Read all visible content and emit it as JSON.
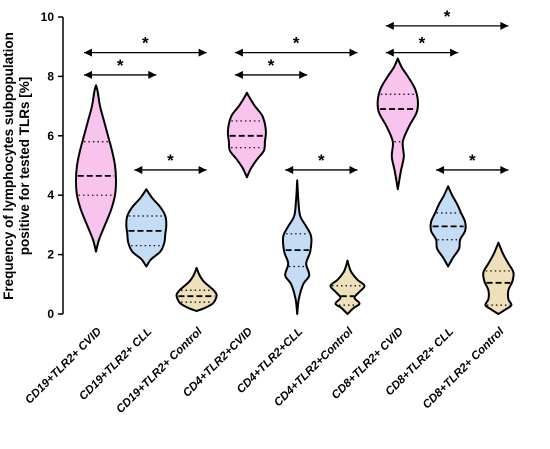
{
  "chart_data": {
    "type": "violin",
    "ylabel_line1": "Frequency of lymphocytes subpopulation",
    "ylabel_line2": "positive for tested TLRs [%]",
    "ylim": [
      0,
      10
    ],
    "yticks": [
      "0",
      "2",
      "4",
      "6",
      "8",
      "10"
    ],
    "categories": [
      "CD19+TLR2+ CVID",
      "CD19+TLR2+ CLL",
      "CD19+TLR2+ Control",
      "CD4+TLR2+CVID",
      "CD4+TLR2+CLL",
      "CD4+TLR2+Control",
      "CD8+TLR2+ CVID",
      "CD8+TLR2+ CLL",
      "CD8+TLR2+ Control"
    ],
    "group_colors": {
      "CVID": "#f8c4ee",
      "CLL": "#c4dcf4",
      "Control": "#ede0bb"
    },
    "violins": [
      {
        "category": "CD19+TLR2+ CVID",
        "group": "CVID",
        "min": 2.1,
        "max": 7.7,
        "q1": 4.0,
        "median": 4.65,
        "q3": 5.8,
        "profile": [
          [
            2.1,
            0
          ],
          [
            2.5,
            0.15
          ],
          [
            3.0,
            0.45
          ],
          [
            3.5,
            0.75
          ],
          [
            4.0,
            0.95
          ],
          [
            4.5,
            1.0
          ],
          [
            5.0,
            0.95
          ],
          [
            5.5,
            0.8
          ],
          [
            6.0,
            0.6
          ],
          [
            6.5,
            0.4
          ],
          [
            7.0,
            0.2
          ],
          [
            7.5,
            0.08
          ],
          [
            7.7,
            0
          ]
        ]
      },
      {
        "category": "CD19+TLR2+ CLL",
        "group": "CLL",
        "min": 1.6,
        "max": 4.2,
        "q1": 2.3,
        "median": 2.8,
        "q3": 3.3,
        "profile": [
          [
            1.6,
            0
          ],
          [
            1.85,
            0.25
          ],
          [
            2.1,
            0.7
          ],
          [
            2.4,
            0.9
          ],
          [
            2.7,
            0.95
          ],
          [
            3.0,
            1.0
          ],
          [
            3.3,
            0.95
          ],
          [
            3.6,
            0.7
          ],
          [
            3.9,
            0.3
          ],
          [
            4.2,
            0
          ]
        ]
      },
      {
        "category": "CD19+TLR2+ Control",
        "group": "Control",
        "min": 0.1,
        "max": 1.55,
        "q1": 0.4,
        "median": 0.6,
        "q3": 0.8,
        "profile": [
          [
            0.1,
            0
          ],
          [
            0.2,
            0.4
          ],
          [
            0.35,
            0.8
          ],
          [
            0.5,
            0.95
          ],
          [
            0.65,
            1.0
          ],
          [
            0.8,
            0.85
          ],
          [
            0.95,
            0.6
          ],
          [
            1.1,
            0.35
          ],
          [
            1.3,
            0.15
          ],
          [
            1.55,
            0
          ]
        ]
      },
      {
        "category": "CD4+TLR2+CVID",
        "group": "CVID",
        "min": 4.6,
        "max": 7.45,
        "q1": 5.6,
        "median": 6.0,
        "q3": 6.5,
        "profile": [
          [
            4.6,
            0
          ],
          [
            4.9,
            0.2
          ],
          [
            5.2,
            0.5
          ],
          [
            5.5,
            0.85
          ],
          [
            5.8,
            0.9
          ],
          [
            6.1,
            0.95
          ],
          [
            6.4,
            0.9
          ],
          [
            6.7,
            0.75
          ],
          [
            7.0,
            0.4
          ],
          [
            7.3,
            0.12
          ],
          [
            7.45,
            0
          ]
        ]
      },
      {
        "category": "CD4+TLR2+CLL",
        "group": "CLL",
        "min": 0.0,
        "max": 4.5,
        "q1": 1.6,
        "median": 2.15,
        "q3": 2.7,
        "profile": [
          [
            0.0,
            0
          ],
          [
            0.5,
            0.08
          ],
          [
            1.0,
            0.3
          ],
          [
            1.3,
            0.6
          ],
          [
            1.7,
            0.45
          ],
          [
            2.1,
            0.65
          ],
          [
            2.6,
            0.7
          ],
          [
            2.95,
            0.45
          ],
          [
            3.3,
            0.15
          ],
          [
            3.8,
            0.06
          ],
          [
            4.5,
            0
          ]
        ]
      },
      {
        "category": "CD4+TLR2+Control",
        "group": "Control",
        "min": 0.0,
        "max": 1.8,
        "q1": 0.3,
        "median": 0.6,
        "q3": 0.95,
        "profile": [
          [
            0.0,
            0
          ],
          [
            0.2,
            0.3
          ],
          [
            0.35,
            0.6
          ],
          [
            0.55,
            0.35
          ],
          [
            0.75,
            0.6
          ],
          [
            0.95,
            0.85
          ],
          [
            1.15,
            0.5
          ],
          [
            1.4,
            0.2
          ],
          [
            1.6,
            0.08
          ],
          [
            1.8,
            0
          ]
        ]
      },
      {
        "category": "CD8+TLR2+ CVID",
        "group": "CVID",
        "min": 4.2,
        "max": 8.6,
        "q1": 5.8,
        "median": 6.9,
        "q3": 7.4,
        "profile": [
          [
            4.2,
            0
          ],
          [
            4.8,
            0.15
          ],
          [
            5.3,
            0.3
          ],
          [
            5.8,
            0.25
          ],
          [
            6.3,
            0.55
          ],
          [
            6.8,
            0.95
          ],
          [
            7.2,
            1.0
          ],
          [
            7.6,
            0.85
          ],
          [
            8.0,
            0.5
          ],
          [
            8.3,
            0.2
          ],
          [
            8.6,
            0
          ]
        ]
      },
      {
        "category": "CD8+TLR2+ CLL",
        "group": "CLL",
        "min": 1.6,
        "max": 4.3,
        "q1": 2.5,
        "median": 2.95,
        "q3": 3.4,
        "profile": [
          [
            1.6,
            0
          ],
          [
            1.9,
            0.25
          ],
          [
            2.2,
            0.55
          ],
          [
            2.5,
            0.6
          ],
          [
            2.8,
            0.85
          ],
          [
            3.1,
            0.85
          ],
          [
            3.4,
            0.65
          ],
          [
            3.7,
            0.45
          ],
          [
            4.0,
            0.2
          ],
          [
            4.3,
            0
          ]
        ]
      },
      {
        "category": "CD8+TLR2+ Control",
        "group": "Control",
        "min": 0.0,
        "max": 2.4,
        "q1": 0.3,
        "median": 1.05,
        "q3": 1.45,
        "profile": [
          [
            0.0,
            0
          ],
          [
            0.15,
            0.35
          ],
          [
            0.3,
            0.65
          ],
          [
            0.5,
            0.5
          ],
          [
            0.8,
            0.5
          ],
          [
            1.1,
            0.7
          ],
          [
            1.4,
            0.75
          ],
          [
            1.7,
            0.5
          ],
          [
            2.0,
            0.25
          ],
          [
            2.4,
            0
          ]
        ]
      }
    ],
    "significance": [
      {
        "from": 0,
        "to": 1,
        "y": 8.05,
        "label": "*"
      },
      {
        "from": 0,
        "to": 2,
        "y": 8.8,
        "label": "*"
      },
      {
        "from": 1,
        "to": 2,
        "y": 4.85,
        "label": "*"
      },
      {
        "from": 3,
        "to": 4,
        "y": 8.05,
        "label": "*"
      },
      {
        "from": 3,
        "to": 5,
        "y": 8.8,
        "label": "*"
      },
      {
        "from": 4,
        "to": 5,
        "y": 4.85,
        "label": "*"
      },
      {
        "from": 6,
        "to": 7,
        "y": 8.8,
        "label": "*"
      },
      {
        "from": 6,
        "to": 8,
        "y": 9.7,
        "label": "*"
      },
      {
        "from": 7,
        "to": 8,
        "y": 4.85,
        "label": "*"
      }
    ]
  }
}
